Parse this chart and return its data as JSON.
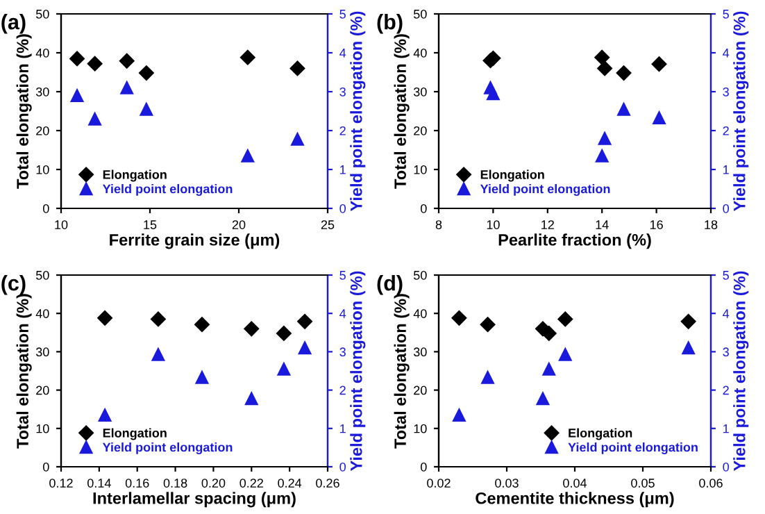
{
  "chart_data": [
    {
      "type": "scatter",
      "title": "(a)",
      "xlabel": "Ferrite grain size (μm)",
      "ylabel": "Total elongation (%)",
      "y2label": "Yield point elongation (%)",
      "xlim": [
        10,
        25
      ],
      "xticks": [
        10,
        15,
        20,
        25
      ],
      "ylim": [
        0,
        50
      ],
      "yticks": [
        0,
        10,
        20,
        30,
        40,
        50
      ],
      "y2lim": [
        0,
        5
      ],
      "y2ticks": [
        0,
        1,
        2,
        3,
        4,
        5
      ],
      "legend": "bottom left",
      "grid": false,
      "series": [
        {
          "name": "Elongation",
          "color": "#000000",
          "marker": "diamond",
          "x": [
            10.9,
            11.9,
            13.7,
            14.8,
            20.5,
            23.3
          ],
          "values": [
            38.5,
            37.2,
            37.9,
            34.8,
            38.8,
            36.0
          ]
        },
        {
          "name": "Yield point elongation",
          "color": "#1a1add",
          "marker": "triangle",
          "axis": "y2",
          "x": [
            10.9,
            11.9,
            13.7,
            14.8,
            20.5,
            23.3
          ],
          "values": [
            2.9,
            2.3,
            3.1,
            2.55,
            1.35,
            1.78
          ]
        }
      ]
    },
    {
      "type": "scatter",
      "title": "(b)",
      "xlabel": "Pearlite fraction (%)",
      "ylabel": "Total elongation (%)",
      "y2label": "Yield point elongation (%)",
      "xlim": [
        8,
        18
      ],
      "xticks": [
        8,
        10,
        12,
        14,
        16,
        18
      ],
      "ylim": [
        0,
        50
      ],
      "yticks": [
        0,
        10,
        20,
        30,
        40,
        50
      ],
      "y2lim": [
        0,
        5
      ],
      "y2ticks": [
        0,
        1,
        2,
        3,
        4,
        5
      ],
      "legend": "bottom left",
      "grid": false,
      "series": [
        {
          "name": "Elongation",
          "color": "#000000",
          "marker": "diamond",
          "x": [
            9.9,
            10.0,
            14.0,
            14.1,
            14.8,
            16.1
          ],
          "values": [
            38.0,
            38.6,
            38.8,
            36.0,
            34.8,
            37.1
          ]
        },
        {
          "name": "Yield point elongation",
          "color": "#1a1add",
          "marker": "triangle",
          "axis": "y2",
          "x": [
            9.9,
            10.0,
            14.0,
            14.1,
            14.8,
            16.1
          ],
          "values": [
            3.1,
            2.95,
            1.35,
            1.8,
            2.55,
            2.33
          ]
        }
      ]
    },
    {
      "type": "scatter",
      "title": "(c)",
      "xlabel": "Interlamellar spacing (μm)",
      "ylabel": "Total elongation (%)",
      "y2label": "Yield point elongation (%)",
      "xlim": [
        0.12,
        0.26
      ],
      "xticks": [
        {
          "value": 0.12,
          "label": "0.12"
        },
        {
          "value": 0.14,
          "label": "0.14"
        },
        {
          "value": 0.16,
          "label": "0.16"
        },
        {
          "value": 0.18,
          "label": "0.18"
        },
        {
          "value": 0.2,
          "label": "0.20"
        },
        {
          "value": 0.22,
          "label": "0.22"
        },
        {
          "value": 0.24,
          "label": "0.24"
        },
        {
          "value": 0.26,
          "label": "0.26"
        }
      ],
      "ylim": [
        0,
        50
      ],
      "yticks": [
        0,
        10,
        20,
        30,
        40,
        50
      ],
      "y2lim": [
        0,
        5
      ],
      "y2ticks": [
        0,
        1,
        2,
        3,
        4,
        5
      ],
      "legend": "bottom left",
      "grid": false,
      "series": [
        {
          "name": "Elongation",
          "color": "#000000",
          "marker": "diamond",
          "x": [
            0.143,
            0.171,
            0.194,
            0.22,
            0.237,
            0.248
          ],
          "values": [
            38.8,
            38.5,
            37.1,
            36.0,
            34.8,
            37.9
          ]
        },
        {
          "name": "Yield point elongation",
          "color": "#1a1add",
          "marker": "triangle",
          "axis": "y2",
          "x": [
            0.143,
            0.171,
            0.194,
            0.22,
            0.237,
            0.248
          ],
          "values": [
            1.35,
            2.93,
            2.33,
            1.78,
            2.55,
            3.1
          ]
        }
      ]
    },
    {
      "type": "scatter",
      "title": "(d)",
      "xlabel": "Cementite thickness (μm)",
      "ylabel": "Total elongation (%)",
      "y2label": "Yield point elongation (%)",
      "xlim": [
        0.02,
        0.06
      ],
      "xticks": [
        0.02,
        0.03,
        0.04,
        0.05,
        0.06
      ],
      "ylim": [
        0,
        50
      ],
      "yticks": [
        0,
        10,
        20,
        30,
        40,
        50
      ],
      "y2lim": [
        0,
        5
      ],
      "y2ticks": [
        0,
        1,
        2,
        3,
        4,
        5
      ],
      "legend": "bottom right",
      "grid": false,
      "series": [
        {
          "name": "Elongation",
          "color": "#000000",
          "marker": "diamond",
          "x": [
            0.023,
            0.0272,
            0.0353,
            0.0362,
            0.0386,
            0.0567
          ],
          "values": [
            38.8,
            37.1,
            36.0,
            34.8,
            38.5,
            37.9
          ]
        },
        {
          "name": "Yield point elongation",
          "color": "#1a1add",
          "marker": "triangle",
          "axis": "y2",
          "x": [
            0.023,
            0.0272,
            0.0353,
            0.0362,
            0.0386,
            0.0567
          ],
          "values": [
            1.35,
            2.33,
            1.78,
            2.55,
            2.93,
            3.1
          ]
        }
      ]
    }
  ]
}
